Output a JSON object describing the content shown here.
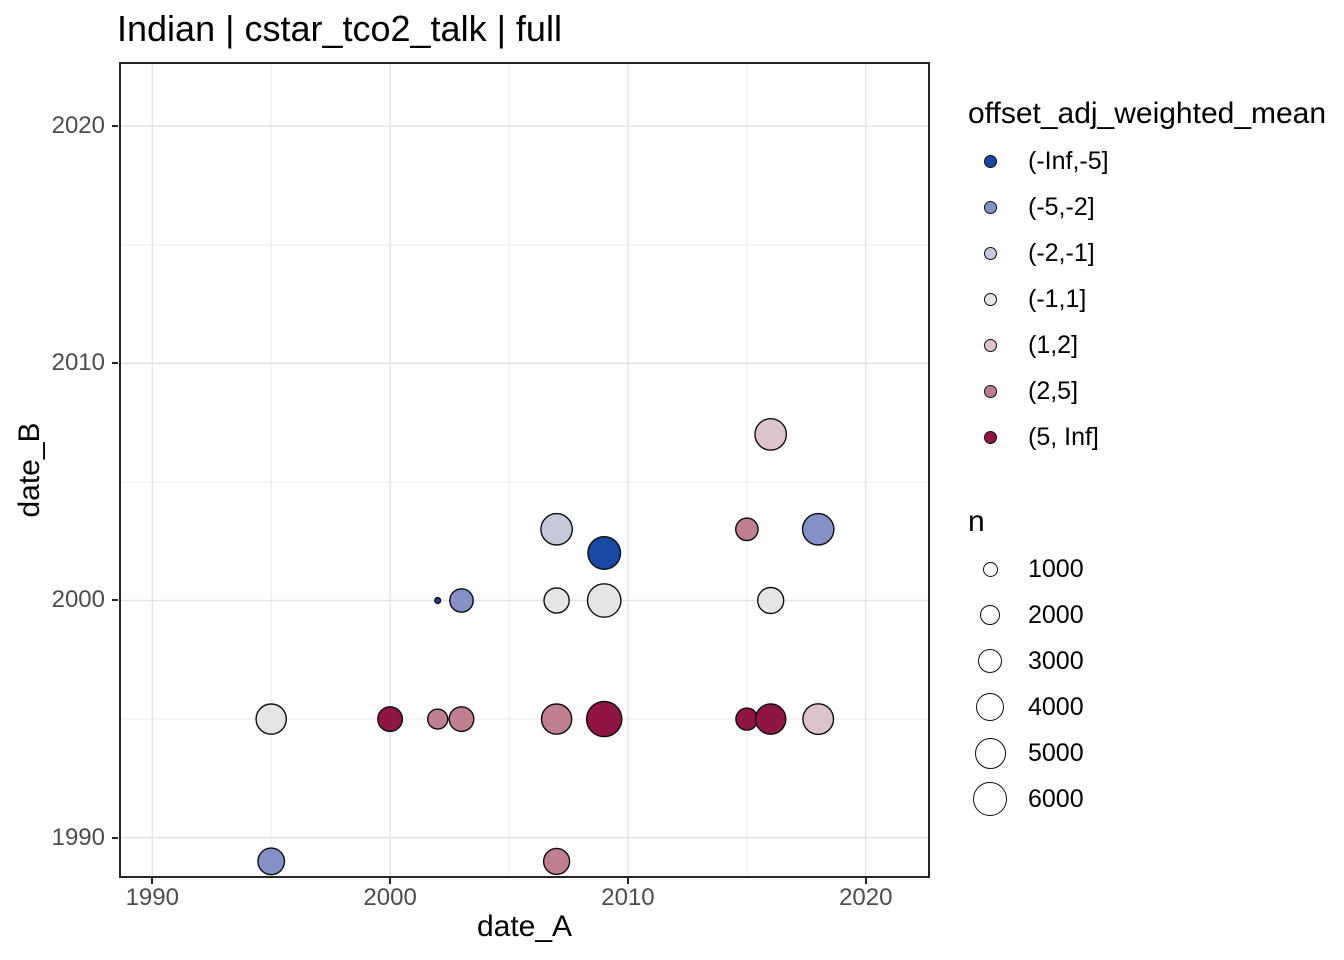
{
  "title": "Indian | cstar_tco2_talk | full",
  "chart_data": {
    "type": "scatter",
    "title": "Indian | cstar_tco2_talk | full",
    "xlabel": "date_A",
    "ylabel": "date_B",
    "x_axis": {
      "ticks": [
        1990,
        2000,
        2010,
        2020
      ],
      "minor": [
        1995,
        2005,
        2015
      ],
      "range": [
        1988.6,
        2022.7
      ]
    },
    "y_axis": {
      "ticks": [
        1990,
        2000,
        2010,
        2020
      ],
      "minor": [
        1995,
        2005,
        2015
      ],
      "range": [
        1988.3,
        2022.7
      ]
    },
    "grid": "on",
    "legend_position": "right",
    "color_legend": {
      "title": "offset_adj_weighted_mean",
      "entries": [
        {
          "label": "(-Inf,-5]",
          "color": "#1648A4"
        },
        {
          "label": "(-5,-2]",
          "color": "#8391C7"
        },
        {
          "label": "(-2,-1]",
          "color": "#C6C9DB"
        },
        {
          "label": "(-1,1]",
          "color": "#E5E5E5"
        },
        {
          "label": "(1,2]",
          "color": "#DDC3CD"
        },
        {
          "label": "(2,5]",
          "color": "#C07E91"
        },
        {
          "label": "(5, Inf]",
          "color": "#901544"
        }
      ]
    },
    "size_legend": {
      "title": "n",
      "entries": [
        1000,
        2000,
        3000,
        4000,
        5000,
        6000
      ]
    },
    "points": [
      {
        "date_A": 1995,
        "date_B": 1989,
        "bin": "(-5,-2]",
        "n": 4200
      },
      {
        "date_A": 1995,
        "date_B": 1995,
        "bin": "(-1,1]",
        "n": 5400
      },
      {
        "date_A": 2000,
        "date_B": 1995,
        "bin": "(5, Inf]",
        "n": 3600
      },
      {
        "date_A": 2002,
        "date_B": 1995,
        "bin": "(2,5]",
        "n": 2400
      },
      {
        "date_A": 2003,
        "date_B": 1995,
        "bin": "(2,5]",
        "n": 3600
      },
      {
        "date_A": 2002,
        "date_B": 2000,
        "bin": "(-Inf,-5]",
        "n": 200
      },
      {
        "date_A": 2003,
        "date_B": 2000,
        "bin": "(-5,-2]",
        "n": 3250
      },
      {
        "date_A": 2007,
        "date_B": 1989,
        "bin": "(2,5]",
        "n": 4000
      },
      {
        "date_A": 2007,
        "date_B": 1995,
        "bin": "(2,5]",
        "n": 5400
      },
      {
        "date_A": 2007,
        "date_B": 2000,
        "bin": "(-1,1]",
        "n": 3800
      },
      {
        "date_A": 2007,
        "date_B": 2003,
        "bin": "(-2,-1]",
        "n": 5900
      },
      {
        "date_A": 2009,
        "date_B": 1995,
        "bin": "(5, Inf]",
        "n": 7400
      },
      {
        "date_A": 2009,
        "date_B": 2000,
        "bin": "(-1,1]",
        "n": 6600
      },
      {
        "date_A": 2009,
        "date_B": 2002,
        "bin": "(-Inf,-5]",
        "n": 6300
      },
      {
        "date_A": 2015,
        "date_B": 1995,
        "bin": "(5, Inf]",
        "n": 2900
      },
      {
        "date_A": 2015,
        "date_B": 2003,
        "bin": "(2,5]",
        "n": 3000
      },
      {
        "date_A": 2016,
        "date_B": 1995,
        "bin": "(5, Inf]",
        "n": 5400
      },
      {
        "date_A": 2016,
        "date_B": 2000,
        "bin": "(-1,1]",
        "n": 4000
      },
      {
        "date_A": 2016,
        "date_B": 2007,
        "bin": "(1,2]",
        "n": 5900
      },
      {
        "date_A": 2018,
        "date_B": 1995,
        "bin": "(1,2]",
        "n": 5600
      },
      {
        "date_A": 2018,
        "date_B": 2003,
        "bin": "(-5,-2]",
        "n": 5900
      }
    ],
    "style": {
      "grid_major_color": "#e3e3e3",
      "grid_minor_color": "#ededed",
      "panel_border_color": "#262626",
      "point_stroke_color": "#0d0d0d",
      "tick_text_color": "#4d4d4d"
    }
  }
}
